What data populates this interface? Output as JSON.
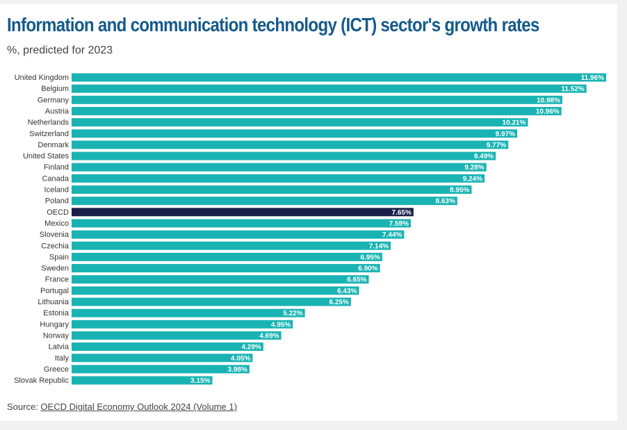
{
  "chart_data": {
    "type": "bar",
    "orientation": "horizontal",
    "title": "Information and communication technology (ICT) sector's growth rates",
    "subtitle": "%, predicted for 2023",
    "categories": [
      "United Kingdom",
      "Belgium",
      "Germany",
      "Austria",
      "Netherlands",
      "Switzerland",
      "Denmark",
      "United States",
      "Finland",
      "Canada",
      "Iceland",
      "Poland",
      "OECD",
      "Mexico",
      "Slovenia",
      "Czechia",
      "Spain",
      "Sweden",
      "France",
      "Portugal",
      "Lithuania",
      "Estonia",
      "Hungary",
      "Norway",
      "Latvia",
      "Italy",
      "Greece",
      "Slovak Republic"
    ],
    "values": [
      11.96,
      11.52,
      10.98,
      10.96,
      10.21,
      9.97,
      9.77,
      9.49,
      9.28,
      9.24,
      8.95,
      8.63,
      7.65,
      7.59,
      7.44,
      7.14,
      6.95,
      6.9,
      6.65,
      6.43,
      6.25,
      5.22,
      4.95,
      4.69,
      4.29,
      4.05,
      3.98,
      3.15
    ],
    "labels": [
      "11.96%",
      "11.52%",
      "10.98%",
      "10.96%",
      "10.21%",
      "9.97%",
      "9.77%",
      "9.49%",
      "9.28%",
      "9.24%",
      "8.95%",
      "8.63%",
      "7.65%",
      "7.59%",
      "7.44%",
      "7.14%",
      "6.95%",
      "6.90%",
      "6.65%",
      "6.43%",
      "6.25%",
      "5.22%",
      "4.95%",
      "4.69%",
      "4.29%",
      "4.05%",
      "3.98%",
      "3.15%"
    ],
    "highlight": "OECD",
    "xlim": [
      0,
      12
    ],
    "grid": false,
    "colors": {
      "bar": "#1ab3b3",
      "highlight": "#1a1f4a",
      "title": "#155a8a"
    }
  },
  "source": {
    "prefix": "Source: ",
    "link_text": "OECD Digital Economy Outlook 2024 (Volume 1)"
  }
}
